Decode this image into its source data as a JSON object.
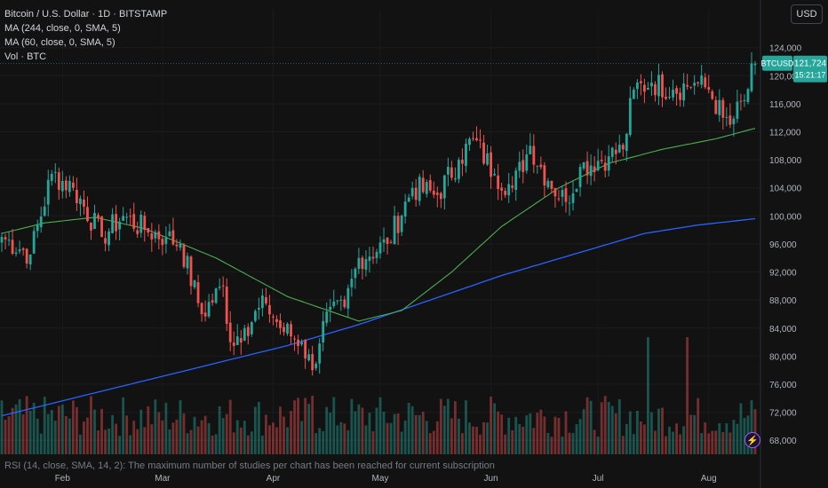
{
  "chart_data": {
    "type": "candlestick",
    "title": "Bitcoin / U.S. Dollar · 1D · BITSTAMP",
    "indicators": [
      "MA (244, close, 0, SMA, 5)",
      "MA (60, close, 0, SMA, 5)",
      "Vol · BTC"
    ],
    "ylim": [
      66000,
      127000
    ],
    "y_ticks": [
      68000,
      72000,
      76000,
      80000,
      84000,
      88000,
      92000,
      96000,
      100000,
      104000,
      108000,
      112000,
      116000,
      120000,
      124000
    ],
    "y_tick_labels": [
      "68,000",
      "72,000",
      "76,000",
      "80,000",
      "84,000",
      "88,000",
      "92,000",
      "96,000",
      "100,000",
      "104,000",
      "108,000",
      "112,000",
      "116,000",
      "120,000",
      "124,000"
    ],
    "x_labels": [
      "Feb",
      "Mar",
      "Apr",
      "May",
      "Jun",
      "Jul",
      "Aug"
    ],
    "key_closes": [
      {
        "day": 0,
        "close": 97000
      },
      {
        "day": 8,
        "close": 94500
      },
      {
        "day": 14,
        "close": 106000
      },
      {
        "day": 20,
        "close": 104000
      },
      {
        "day": 28,
        "close": 97000
      },
      {
        "day": 34,
        "close": 100000
      },
      {
        "day": 40,
        "close": 98000
      },
      {
        "day": 46,
        "close": 97000
      },
      {
        "day": 50,
        "close": 96000
      },
      {
        "day": 56,
        "close": 86000
      },
      {
        "day": 62,
        "close": 90000
      },
      {
        "day": 64,
        "close": 82000
      },
      {
        "day": 68,
        "close": 84000
      },
      {
        "day": 74,
        "close": 87500
      },
      {
        "day": 78,
        "close": 84000
      },
      {
        "day": 84,
        "close": 82000
      },
      {
        "day": 87,
        "close": 78000
      },
      {
        "day": 90,
        "close": 85000
      },
      {
        "day": 96,
        "close": 87000
      },
      {
        "day": 100,
        "close": 94000
      },
      {
        "day": 108,
        "close": 96000
      },
      {
        "day": 115,
        "close": 104000
      },
      {
        "day": 122,
        "close": 103000
      },
      {
        "day": 128,
        "close": 108000
      },
      {
        "day": 132,
        "close": 111000
      },
      {
        "day": 138,
        "close": 106000
      },
      {
        "day": 143,
        "close": 104000
      },
      {
        "day": 148,
        "close": 110000
      },
      {
        "day": 153,
        "close": 105000
      },
      {
        "day": 158,
        "close": 102000
      },
      {
        "day": 162,
        "close": 107000
      },
      {
        "day": 170,
        "close": 108500
      },
      {
        "day": 174,
        "close": 109500
      },
      {
        "day": 177,
        "close": 118000
      },
      {
        "day": 182,
        "close": 119000
      },
      {
        "day": 188,
        "close": 118000
      },
      {
        "day": 194,
        "close": 119000
      },
      {
        "day": 198,
        "close": 118000
      },
      {
        "day": 202,
        "close": 114000
      },
      {
        "day": 204,
        "close": 113000
      },
      {
        "day": 208,
        "close": 116500
      },
      {
        "day": 211,
        "close": 121724
      }
    ],
    "ma60_path": [
      {
        "day": 0,
        "value": 97500
      },
      {
        "day": 12,
        "value": 99000
      },
      {
        "day": 26,
        "value": 99800
      },
      {
        "day": 40,
        "value": 98200
      },
      {
        "day": 60,
        "value": 94000
      },
      {
        "day": 80,
        "value": 88500
      },
      {
        "day": 100,
        "value": 85000
      },
      {
        "day": 112,
        "value": 86500
      },
      {
        "day": 126,
        "value": 92000
      },
      {
        "day": 140,
        "value": 98500
      },
      {
        "day": 156,
        "value": 104000
      },
      {
        "day": 170,
        "value": 107500
      },
      {
        "day": 185,
        "value": 109500
      },
      {
        "day": 200,
        "value": 111000
      },
      {
        "day": 211,
        "value": 112500
      }
    ],
    "ma244_path": [
      {
        "day": 0,
        "value": 71500
      },
      {
        "day": 20,
        "value": 74000
      },
      {
        "day": 40,
        "value": 76500
      },
      {
        "day": 60,
        "value": 79000
      },
      {
        "day": 80,
        "value": 81500
      },
      {
        "day": 100,
        "value": 84500
      },
      {
        "day": 120,
        "value": 88000
      },
      {
        "day": 140,
        "value": 91500
      },
      {
        "day": 160,
        "value": 94500
      },
      {
        "day": 180,
        "value": 97500
      },
      {
        "day": 195,
        "value": 98700
      },
      {
        "day": 211,
        "value": 99600
      }
    ],
    "volume_spikes": [
      {
        "day": 181,
        "relative": 1.0
      },
      {
        "day": 192,
        "relative": 1.0
      },
      {
        "day": 87,
        "relative": 0.5
      }
    ],
    "last_price": {
      "symbol": "BTCUSD",
      "value": "121,724",
      "countdown": "15:21:17"
    },
    "colors": {
      "up": "#26a69a",
      "down": "#ef5350",
      "ma60": "#4caf50",
      "ma244": "#2962ff",
      "background": "#121212",
      "grid": "#1e1e1e"
    }
  },
  "ui": {
    "currency": "USD",
    "rsi_note": "RSI (14, close, SMA, 14, 2): The maximum number of studies per chart has been reached for current subscription",
    "bolt_icon": "lightning-icon"
  }
}
